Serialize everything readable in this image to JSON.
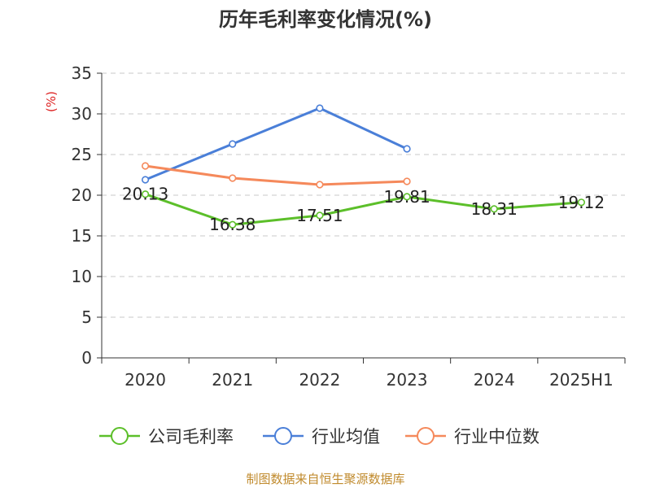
{
  "chart_data": {
    "type": "line",
    "title": "历年毛利率变化情况(%)",
    "ylabel": "(%)",
    "xlabel": "",
    "categories": [
      "2020",
      "2021",
      "2022",
      "2023",
      "2024",
      "2025H1"
    ],
    "ylim": [
      0,
      35
    ],
    "yticks": [
      0,
      5,
      10,
      15,
      20,
      25,
      30,
      35
    ],
    "grid": true,
    "legend": "bottom",
    "series": [
      {
        "name": "公司毛利率",
        "color": "#5cbf2a",
        "values": [
          20.13,
          16.38,
          17.51,
          19.81,
          18.31,
          19.12
        ],
        "labels": [
          "20.13",
          "16.38",
          "17.51",
          "19.81",
          "18.31",
          "19.12"
        ]
      },
      {
        "name": "行业均值",
        "color": "#4a7fd8",
        "values": [
          21.9,
          26.3,
          30.7,
          25.7,
          null,
          null
        ]
      },
      {
        "name": "行业中位数",
        "color": "#f5895b",
        "values": [
          23.6,
          22.1,
          21.3,
          21.7,
          null,
          null
        ]
      }
    ]
  },
  "source": "制图数据来自恒生聚源数据库"
}
